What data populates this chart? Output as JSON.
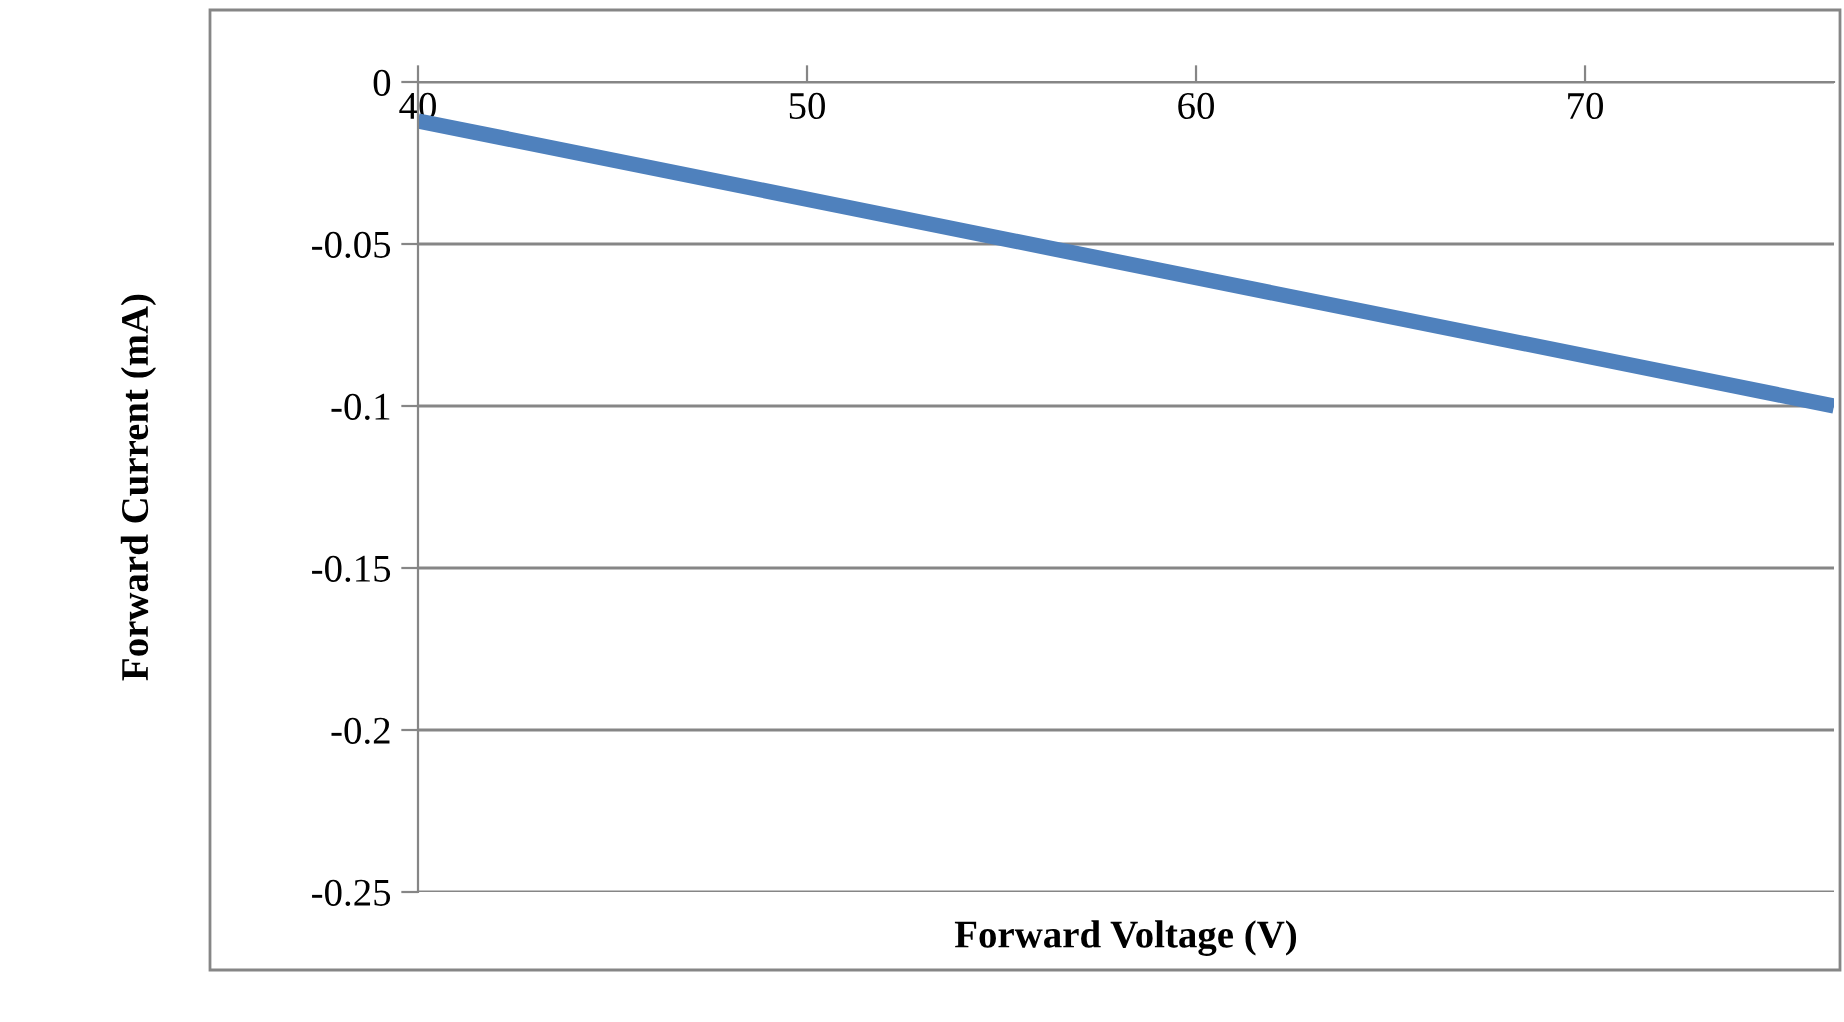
{
  "chart_data": {
    "type": "line",
    "xlabel": "Forward Voltage (V)",
    "ylabel": "Forward Current (mA)",
    "x": [
      40,
      76.4
    ],
    "series": [
      {
        "color": "#4f81bd",
        "values": [
          -0.012,
          -0.1
        ]
      }
    ],
    "xlim": [
      40,
      76.4
    ],
    "xticks": [
      40,
      50,
      60,
      70
    ],
    "ylim": [
      -0.25,
      0
    ],
    "yticks": [
      -0.25,
      -0.2,
      -0.15,
      -0.1,
      -0.05,
      0
    ],
    "grid": "y",
    "legend": false,
    "marker": "none",
    "line_style": "solid"
  }
}
